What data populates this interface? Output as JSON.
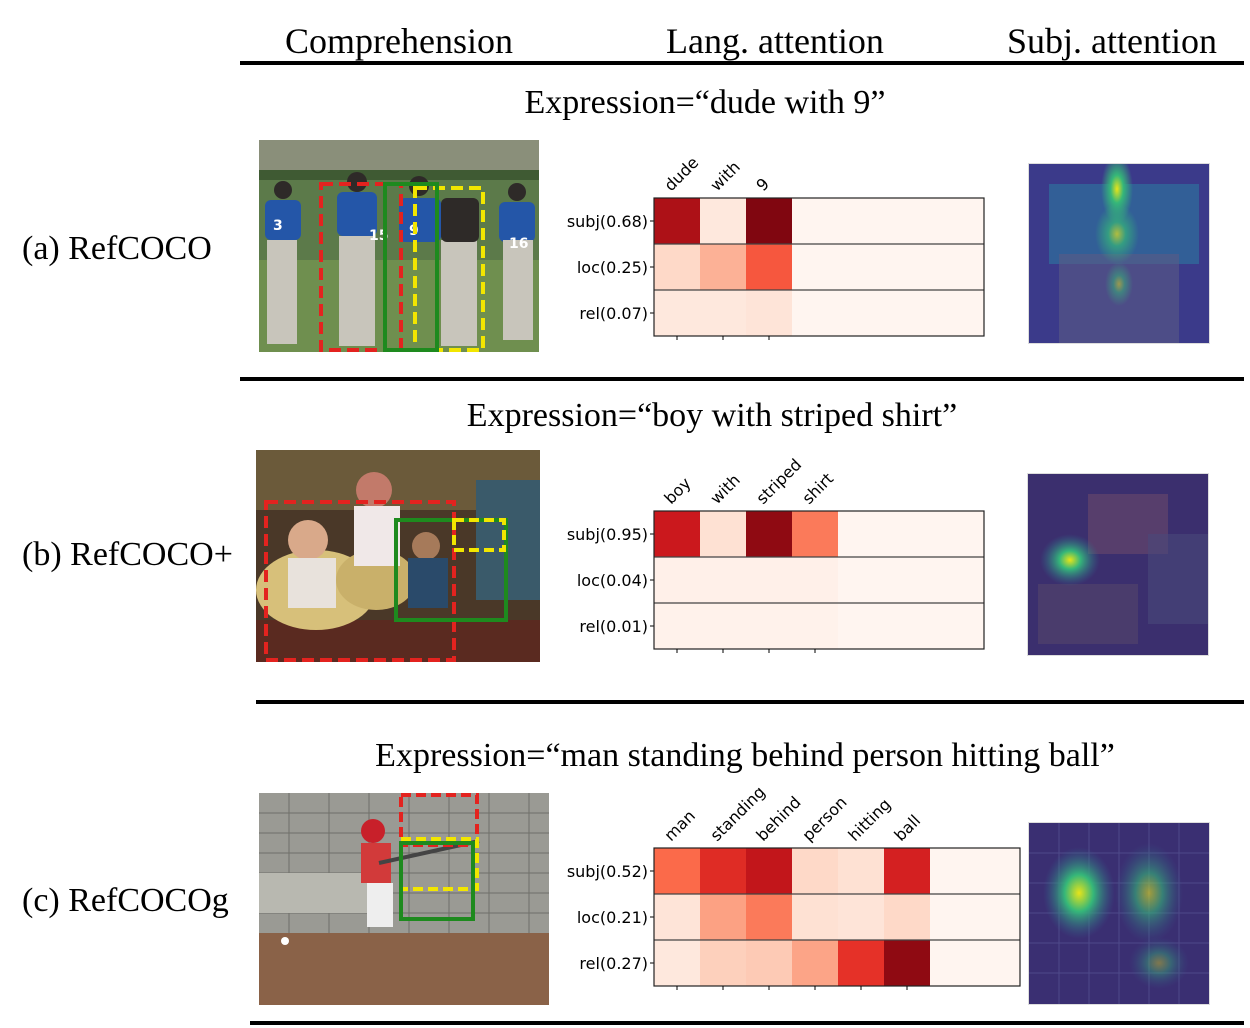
{
  "headers": {
    "comprehension": "Comprehension",
    "lang_attention": "Lang. attention",
    "subj_attention": "Subj. attention"
  },
  "rows": [
    {
      "label": "(a) RefCOCO",
      "expression": "Expression=“dude with 9”",
      "photo": "baseball players in blue jerseys numbered 3, 15, 9, 16",
      "heatmap": {
        "words": [
          "dude",
          "with",
          "9"
        ],
        "modules": [
          "subj(0.68)",
          "loc(0.25)",
          "rel(0.07)"
        ],
        "values": [
          [
            0.85,
            0.08,
            0.95
          ],
          [
            0.15,
            0.28,
            0.55
          ],
          [
            0.08,
            0.08,
            0.1
          ]
        ]
      }
    },
    {
      "label": "(b) RefCOCO+",
      "expression": "Expression=“boy with striped shirt”",
      "photo": "children sitting on chairs in a living room",
      "heatmap": {
        "words": [
          "boy",
          "with",
          "striped",
          "shirt"
        ],
        "modules": [
          "subj(0.95)",
          "loc(0.04)",
          "rel(0.01)"
        ],
        "values": [
          [
            0.75,
            0.12,
            0.92,
            0.45
          ],
          [
            0.03,
            0.03,
            0.03,
            0.03
          ],
          [
            0.02,
            0.02,
            0.02,
            0.02
          ]
        ]
      }
    },
    {
      "label": "(c) RefCOCOg",
      "expression": "Expression=“man standing behind person hitting ball”",
      "photo": "youth baseball batter in red helmet at home plate",
      "heatmap": {
        "words": [
          "man",
          "standing",
          "behind",
          "person",
          "hitting",
          "ball"
        ],
        "modules": [
          "subj(0.52)",
          "loc(0.21)",
          "rel(0.27)"
        ],
        "values": [
          [
            0.5,
            0.68,
            0.78,
            0.15,
            0.12,
            0.72
          ],
          [
            0.1,
            0.33,
            0.45,
            0.12,
            0.1,
            0.15
          ],
          [
            0.08,
            0.18,
            0.2,
            0.32,
            0.66,
            0.92
          ]
        ]
      }
    }
  ],
  "colors": {
    "gt_box": "#e3231f",
    "pred_box": "#1e8a1e",
    "alt_box": "#f2e600",
    "cmap_low": "#fff5f0",
    "cmap_high": "#67000d"
  }
}
